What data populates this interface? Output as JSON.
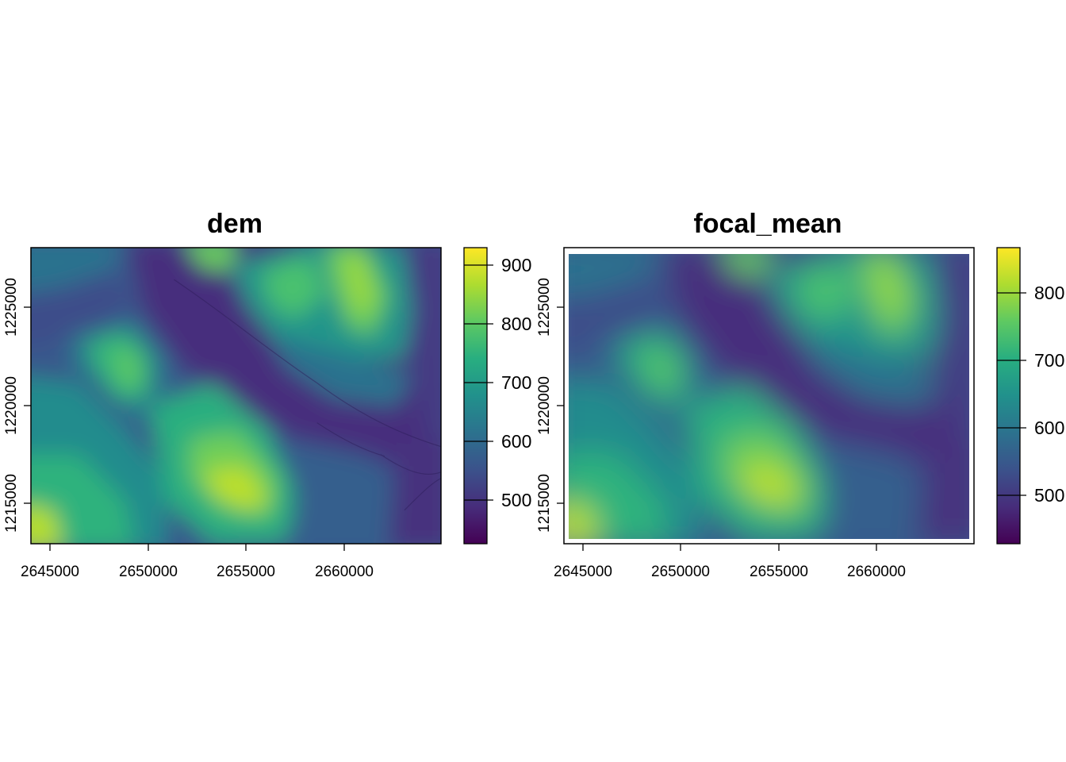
{
  "panels": [
    {
      "title": "dem",
      "x_ticks": [
        "2645000",
        "2650000",
        "2655000",
        "2660000"
      ],
      "y_ticks": [
        "1215000",
        "1220000",
        "1225000"
      ],
      "colorbar": {
        "ticks": [
          "500",
          "600",
          "700",
          "800",
          "900"
        ],
        "min": 450,
        "max": 925
      },
      "smoothed": false,
      "na_border": false
    },
    {
      "title": "focal_mean",
      "x_ticks": [
        "2645000",
        "2650000",
        "2655000",
        "2660000"
      ],
      "y_ticks": [
        "1215000",
        "1220000",
        "1225000"
      ],
      "colorbar": {
        "ticks": [
          "500",
          "600",
          "700",
          "800"
        ],
        "min": 430,
        "max": 865
      },
      "smoothed": true,
      "na_border": true
    }
  ],
  "chart_data": [
    {
      "type": "heatmap",
      "title": "dem",
      "x_values": [
        2645000,
        2650000,
        2655000,
        2660000
      ],
      "y_values": [
        1215000,
        1220000,
        1225000
      ],
      "xlim": [
        2644100,
        2665000
      ],
      "ylim": [
        1213000,
        1228000
      ],
      "color_scale": "viridis",
      "value_range": [
        450,
        925
      ],
      "legend_ticks": [
        500,
        600,
        700,
        800,
        900
      ],
      "legend": "right"
    },
    {
      "type": "heatmap",
      "title": "focal_mean",
      "x_values": [
        2645000,
        2650000,
        2655000,
        2660000
      ],
      "y_values": [
        1215000,
        1220000,
        1225000
      ],
      "xlim": [
        2644100,
        2665000
      ],
      "ylim": [
        1213000,
        1228000
      ],
      "color_scale": "viridis",
      "value_range": [
        430,
        865
      ],
      "legend_ticks": [
        500,
        600,
        700,
        800
      ],
      "legend": "right"
    }
  ]
}
